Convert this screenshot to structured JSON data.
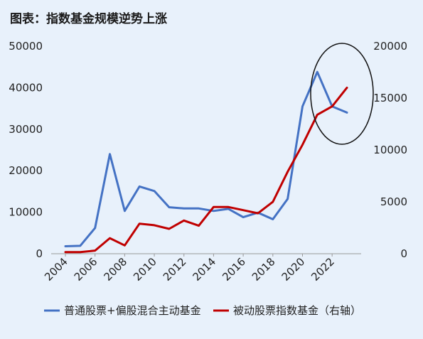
{
  "title": "图表：指数基金规模逆势上涨",
  "chart_data": {
    "type": "line",
    "x": [
      2004,
      2005,
      2006,
      2007,
      2008,
      2009,
      2010,
      2011,
      2012,
      2013,
      2014,
      2015,
      2016,
      2017,
      2018,
      2019,
      2020,
      2021,
      2022,
      2023
    ],
    "x_tick_labels": [
      "2004",
      "2006",
      "2008",
      "2010",
      "2012",
      "2014",
      "2016",
      "2018",
      "2020",
      "2022"
    ],
    "y_left_ticks": [
      "0",
      "10000",
      "20000",
      "30000",
      "40000",
      "50000"
    ],
    "y_right_ticks": [
      "0",
      "5000",
      "10000",
      "15000",
      "20000"
    ],
    "ylim_left": [
      0,
      50000
    ],
    "ylim_right": [
      0,
      20000
    ],
    "series": [
      {
        "name": "普通股票+偏股混合主动基金",
        "axis": "left",
        "color": "#4472c4",
        "values": [
          1800,
          1900,
          6200,
          24000,
          10300,
          16200,
          15100,
          11200,
          10900,
          10900,
          10300,
          10800,
          8800,
          9900,
          8300,
          13200,
          35500,
          43800,
          35500,
          34000
        ]
      },
      {
        "name": "被动股票指数基金（右轴）",
        "axis": "right",
        "color": "#c00000",
        "values": [
          150,
          150,
          300,
          1500,
          800,
          2900,
          2750,
          2400,
          3200,
          2700,
          4500,
          4500,
          4200,
          3900,
          5000,
          7900,
          10500,
          13400,
          14200,
          16000
        ]
      }
    ],
    "legend_position": "bottom",
    "grid": false,
    "annotation": "ellipse around 2020-2023 peak"
  }
}
